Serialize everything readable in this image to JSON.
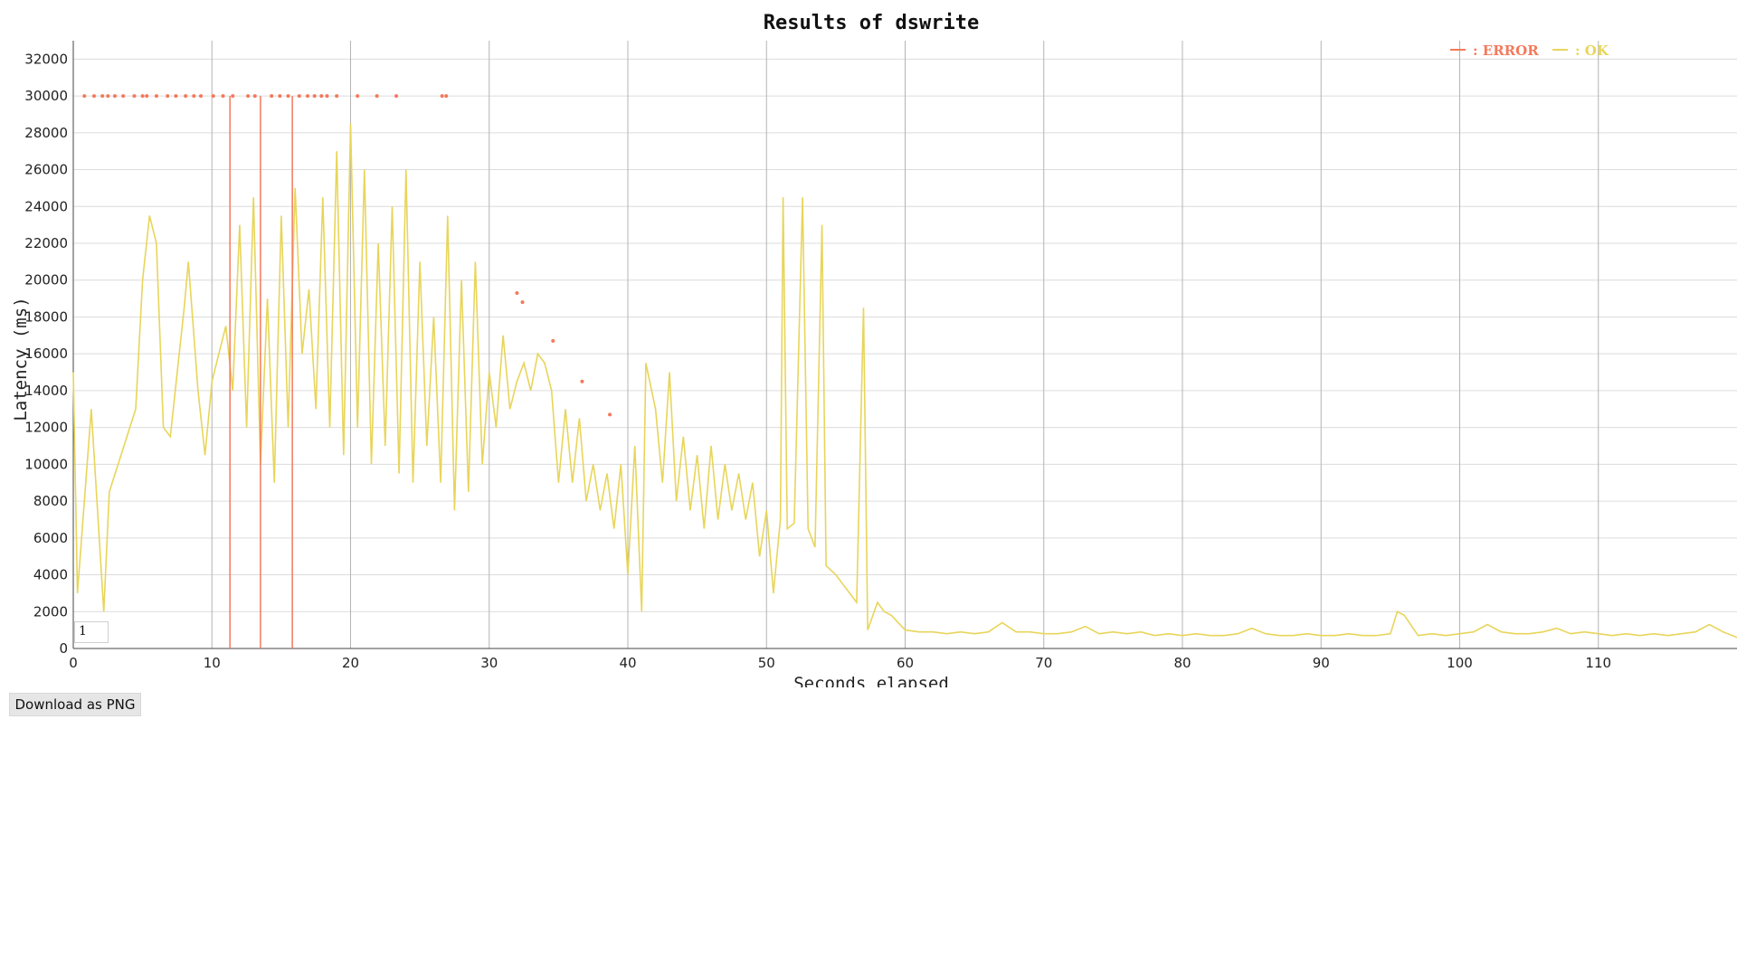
{
  "chart_data": {
    "type": "line",
    "title": "Results of dswrite",
    "xlabel": "Seconds elapsed",
    "ylabel": "Latency (ms)",
    "xlim": [
      0,
      120
    ],
    "ylim": [
      0,
      33000
    ],
    "x_ticks": [
      0,
      10,
      20,
      30,
      40,
      50,
      60,
      70,
      80,
      90,
      100,
      110
    ],
    "y_ticks": [
      0,
      2000,
      4000,
      6000,
      8000,
      10000,
      12000,
      14000,
      16000,
      18000,
      20000,
      22000,
      24000,
      26000,
      28000,
      30000,
      32000
    ],
    "grid": true,
    "legend_position": "top-right",
    "series": [
      {
        "name": "ERROR",
        "color": "#f4795b",
        "points": [
          [
            0.8,
            30000
          ],
          [
            1.5,
            30000
          ],
          [
            2.1,
            30000
          ],
          [
            2.5,
            30000
          ],
          [
            3.0,
            30000
          ],
          [
            3.6,
            30000
          ],
          [
            4.4,
            30000
          ],
          [
            5.0,
            30000
          ],
          [
            5.3,
            30000
          ],
          [
            6.0,
            30000
          ],
          [
            6.8,
            30000
          ],
          [
            7.4,
            30000
          ],
          [
            8.1,
            30000
          ],
          [
            8.7,
            30000
          ],
          [
            9.2,
            30000
          ],
          [
            10.1,
            30000
          ],
          [
            10.8,
            30000
          ],
          [
            11.5,
            30000
          ],
          [
            12.6,
            30000
          ],
          [
            13.1,
            30000
          ],
          [
            14.3,
            30000
          ],
          [
            14.9,
            30000
          ],
          [
            15.5,
            30000
          ],
          [
            16.3,
            30000
          ],
          [
            16.9,
            30000
          ],
          [
            17.4,
            30000
          ],
          [
            17.9,
            30000
          ],
          [
            18.3,
            30000
          ],
          [
            19.0,
            30000
          ],
          [
            20.5,
            30000
          ],
          [
            21.9,
            30000
          ],
          [
            23.3,
            30000
          ],
          [
            26.6,
            30000
          ],
          [
            26.9,
            30000
          ],
          [
            32.0,
            19300
          ],
          [
            32.4,
            18800
          ],
          [
            34.6,
            16700
          ],
          [
            36.7,
            14500
          ],
          [
            38.7,
            12700
          ]
        ],
        "spikes": [
          [
            11.3,
            30000
          ],
          [
            13.5,
            30000
          ],
          [
            15.8,
            30000
          ]
        ]
      },
      {
        "name": "OK",
        "color": "#e8d55a",
        "points": [
          [
            0,
            15000
          ],
          [
            0.3,
            3000
          ],
          [
            1.0,
            10000
          ],
          [
            1.3,
            13000
          ],
          [
            2.2,
            2000
          ],
          [
            2.6,
            8500
          ],
          [
            4.5,
            13000
          ],
          [
            5.0,
            20000
          ],
          [
            5.5,
            23500
          ],
          [
            6.0,
            22000
          ],
          [
            6.5,
            12000
          ],
          [
            7.0,
            11500
          ],
          [
            7.5,
            15000
          ],
          [
            8.0,
            18500
          ],
          [
            8.3,
            21000
          ],
          [
            9.0,
            14000
          ],
          [
            9.5,
            10500
          ],
          [
            10.0,
            14500
          ],
          [
            10.5,
            16000
          ],
          [
            11.0,
            17500
          ],
          [
            11.5,
            14000
          ],
          [
            12.0,
            23000
          ],
          [
            12.5,
            12000
          ],
          [
            13.0,
            24500
          ],
          [
            13.5,
            10000
          ],
          [
            14.0,
            19000
          ],
          [
            14.5,
            9000
          ],
          [
            15.0,
            23500
          ],
          [
            15.5,
            12000
          ],
          [
            16.0,
            25000
          ],
          [
            16.5,
            16000
          ],
          [
            17.0,
            19500
          ],
          [
            17.5,
            13000
          ],
          [
            18.0,
            24500
          ],
          [
            18.5,
            12000
          ],
          [
            19.0,
            27000
          ],
          [
            19.5,
            10500
          ],
          [
            20.0,
            28500
          ],
          [
            20.5,
            12000
          ],
          [
            21.0,
            26000
          ],
          [
            21.5,
            10000
          ],
          [
            22.0,
            22000
          ],
          [
            22.5,
            11000
          ],
          [
            23.0,
            24000
          ],
          [
            23.5,
            9500
          ],
          [
            24.0,
            26000
          ],
          [
            24.5,
            9000
          ],
          [
            25.0,
            21000
          ],
          [
            25.5,
            11000
          ],
          [
            26.0,
            18000
          ],
          [
            26.5,
            9000
          ],
          [
            27.0,
            23500
          ],
          [
            27.5,
            7500
          ],
          [
            28.0,
            20000
          ],
          [
            28.5,
            8500
          ],
          [
            29.0,
            21000
          ],
          [
            29.5,
            10000
          ],
          [
            30.0,
            15000
          ],
          [
            30.5,
            12000
          ],
          [
            31.0,
            17000
          ],
          [
            31.5,
            13000
          ],
          [
            32.0,
            14500
          ],
          [
            32.5,
            15500
          ],
          [
            33.0,
            14000
          ],
          [
            33.5,
            16000
          ],
          [
            34.0,
            15500
          ],
          [
            34.5,
            14000
          ],
          [
            35.0,
            9000
          ],
          [
            35.5,
            13000
          ],
          [
            36.0,
            9000
          ],
          [
            36.5,
            12500
          ],
          [
            37.0,
            8000
          ],
          [
            37.5,
            10000
          ],
          [
            38.0,
            7500
          ],
          [
            38.5,
            9500
          ],
          [
            39.0,
            6500
          ],
          [
            39.5,
            10000
          ],
          [
            40.0,
            4000
          ],
          [
            40.5,
            11000
          ],
          [
            41.0,
            2000
          ],
          [
            41.3,
            15500
          ],
          [
            42.0,
            13000
          ],
          [
            42.5,
            9000
          ],
          [
            43.0,
            15000
          ],
          [
            43.5,
            8000
          ],
          [
            44.0,
            11500
          ],
          [
            44.5,
            7500
          ],
          [
            45.0,
            10500
          ],
          [
            45.5,
            6500
          ],
          [
            46.0,
            11000
          ],
          [
            46.5,
            7000
          ],
          [
            47.0,
            10000
          ],
          [
            47.5,
            7500
          ],
          [
            48.0,
            9500
          ],
          [
            48.5,
            7000
          ],
          [
            49.0,
            9000
          ],
          [
            49.5,
            5000
          ],
          [
            50.0,
            7500
          ],
          [
            50.5,
            3000
          ],
          [
            51.0,
            7000
          ],
          [
            51.2,
            24500
          ],
          [
            51.5,
            6500
          ],
          [
            52.0,
            6800
          ],
          [
            52.6,
            24500
          ],
          [
            53.0,
            6500
          ],
          [
            53.5,
            5500
          ],
          [
            54.0,
            23000
          ],
          [
            54.3,
            4500
          ],
          [
            55.0,
            4000
          ],
          [
            55.5,
            3500
          ],
          [
            56.0,
            3000
          ],
          [
            56.5,
            2500
          ],
          [
            57.0,
            18500
          ],
          [
            57.3,
            1000
          ],
          [
            58.0,
            2500
          ],
          [
            58.5,
            2000
          ],
          [
            59.0,
            1800
          ],
          [
            60.0,
            1000
          ],
          [
            61.0,
            900
          ],
          [
            62.0,
            900
          ],
          [
            63.0,
            800
          ],
          [
            64.0,
            900
          ],
          [
            65.0,
            800
          ],
          [
            66.0,
            900
          ],
          [
            67.0,
            1400
          ],
          [
            68.0,
            900
          ],
          [
            69.0,
            900
          ],
          [
            70.0,
            800
          ],
          [
            71.0,
            800
          ],
          [
            72.0,
            900
          ],
          [
            73.0,
            1200
          ],
          [
            74.0,
            800
          ],
          [
            75.0,
            900
          ],
          [
            76.0,
            800
          ],
          [
            77.0,
            900
          ],
          [
            78.0,
            700
          ],
          [
            79.0,
            800
          ],
          [
            80.0,
            700
          ],
          [
            81.0,
            800
          ],
          [
            82.0,
            700
          ],
          [
            83.0,
            700
          ],
          [
            84.0,
            800
          ],
          [
            85.0,
            1100
          ],
          [
            86.0,
            800
          ],
          [
            87.0,
            700
          ],
          [
            88.0,
            700
          ],
          [
            89.0,
            800
          ],
          [
            90.0,
            700
          ],
          [
            91.0,
            700
          ],
          [
            92.0,
            800
          ],
          [
            93.0,
            700
          ],
          [
            94.0,
            700
          ],
          [
            95.0,
            800
          ],
          [
            95.5,
            2000
          ],
          [
            96.0,
            1800
          ],
          [
            97.0,
            700
          ],
          [
            98.0,
            800
          ],
          [
            99.0,
            700
          ],
          [
            100.0,
            800
          ],
          [
            101.0,
            900
          ],
          [
            102.0,
            1300
          ],
          [
            103.0,
            900
          ],
          [
            104.0,
            800
          ],
          [
            105.0,
            800
          ],
          [
            106.0,
            900
          ],
          [
            107.0,
            1100
          ],
          [
            108.0,
            800
          ],
          [
            109.0,
            900
          ],
          [
            110.0,
            800
          ],
          [
            111.0,
            700
          ],
          [
            112.0,
            800
          ],
          [
            113.0,
            700
          ],
          [
            114.0,
            800
          ],
          [
            115.0,
            700
          ],
          [
            116.0,
            800
          ],
          [
            117.0,
            900
          ],
          [
            118.0,
            1300
          ],
          [
            119.0,
            900
          ],
          [
            120.0,
            600
          ]
        ]
      }
    ]
  },
  "zoom_input": {
    "value": "1"
  },
  "download_button": {
    "label": "Download as PNG"
  },
  "legend": {
    "error_label": ": ERROR",
    "ok_label": ": OK"
  }
}
